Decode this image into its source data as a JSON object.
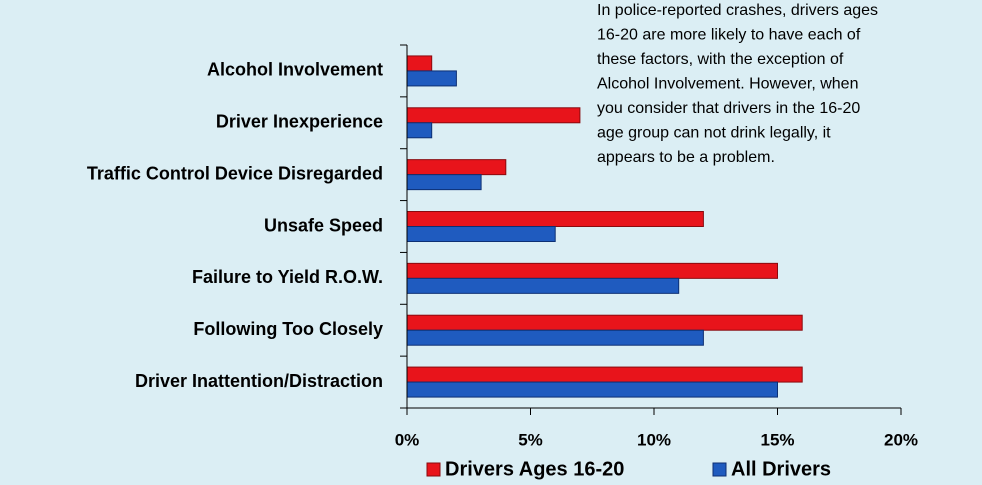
{
  "chart_data": {
    "type": "hbar",
    "annotation": [
      "In police-reported crashes, drivers ages",
      "16-20 are more likely to have each of",
      "these factors, with the exception of",
      "Alcohol Involvement. However, when",
      "you consider that drivers in the 16-20",
      "age group can not drink legally, it",
      "appears to be a problem."
    ],
    "categories": [
      "Alcohol Involvement",
      "Driver Inexperience",
      "Traffic Control Device Disregarded",
      "Unsafe Speed",
      "Failure to Yield R.O.W.",
      "Following Too Closely",
      "Driver Inattention/Distraction"
    ],
    "series": [
      {
        "name": "Drivers Ages 16-20",
        "color": "#e8141b",
        "values": [
          1,
          7,
          4,
          12,
          15,
          16,
          16
        ]
      },
      {
        "name": "All Drivers",
        "color": "#1f5bbf",
        "values": [
          2,
          1,
          3,
          6,
          11,
          12,
          15
        ]
      }
    ],
    "xlim": [
      0,
      20
    ],
    "xticks": [
      {
        "value": 0,
        "label": "0%"
      },
      {
        "value": 5,
        "label": "5%"
      },
      {
        "value": 10,
        "label": "10%"
      },
      {
        "value": 15,
        "label": "15%"
      },
      {
        "value": 20,
        "label": "20%"
      }
    ],
    "legend": "bottom"
  }
}
